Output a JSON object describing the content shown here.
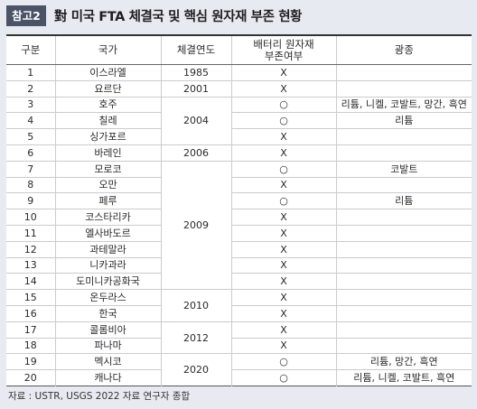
{
  "title": {
    "badge": "참고2",
    "text": "對 미국 FTA 체결국 및 핵심 원자재 부존 현황"
  },
  "table": {
    "headers": {
      "no": "구분",
      "country": "국가",
      "year": "체결연도",
      "battery_line1": "배터리 원자재",
      "battery_line2": "부존여부",
      "minerals": "광종"
    },
    "year_groups": [
      {
        "year": "1985",
        "span": 1
      },
      {
        "year": "2001",
        "span": 1
      },
      {
        "year": "2004",
        "span": 3
      },
      {
        "year": "2006",
        "span": 1
      },
      {
        "year": "2009",
        "span": 8
      },
      {
        "year": "2010",
        "span": 2
      },
      {
        "year": "2012",
        "span": 2
      },
      {
        "year": "2020",
        "span": 2
      }
    ],
    "rows": [
      {
        "no": "1",
        "country": "이스라엘",
        "battery": "X"
      },
      {
        "no": "2",
        "country": "요르단",
        "battery": "X"
      },
      {
        "no": "3",
        "country": "호주",
        "battery": "○",
        "minerals": "리튬, 니켈, 코발트, 망간, 흑연"
      },
      {
        "no": "4",
        "country": "칠레",
        "battery": "○",
        "minerals": "리튬"
      },
      {
        "no": "5",
        "country": "싱가포르",
        "battery": "X"
      },
      {
        "no": "6",
        "country": "바레인",
        "battery": "X"
      },
      {
        "no": "7",
        "country": "모로코",
        "battery": "○",
        "minerals": "코발트"
      },
      {
        "no": "8",
        "country": "오만",
        "battery": "X"
      },
      {
        "no": "9",
        "country": "페루",
        "battery": "○",
        "minerals": "리튬"
      },
      {
        "no": "10",
        "country": "코스타리카",
        "battery": "X"
      },
      {
        "no": "11",
        "country": "엘사바도르",
        "battery": "X"
      },
      {
        "no": "12",
        "country": "과테말라",
        "battery": "X"
      },
      {
        "no": "13",
        "country": "니카과라",
        "battery": "X"
      },
      {
        "no": "14",
        "country": "도미니카공화국",
        "battery": "X"
      },
      {
        "no": "15",
        "country": "온두라스",
        "battery": "X"
      },
      {
        "no": "16",
        "country": "한국",
        "battery": "X"
      },
      {
        "no": "17",
        "country": "콜롬비아",
        "battery": "X"
      },
      {
        "no": "18",
        "country": "파나마",
        "battery": "X"
      },
      {
        "no": "19",
        "country": "멕시코",
        "battery": "○",
        "minerals": "리튬, 망간, 흑연"
      },
      {
        "no": "20",
        "country": "캐나다",
        "battery": "○",
        "minerals": "리튬, 니켈, 코발트, 흑연"
      }
    ]
  },
  "source": "자료 : USTR, USGS 2022 자료 연구자 종합",
  "colors": {
    "background": "#e7ebf1",
    "badge": "#4a5466",
    "strong_rule": "#333333",
    "grid": "#c9cbcf"
  }
}
